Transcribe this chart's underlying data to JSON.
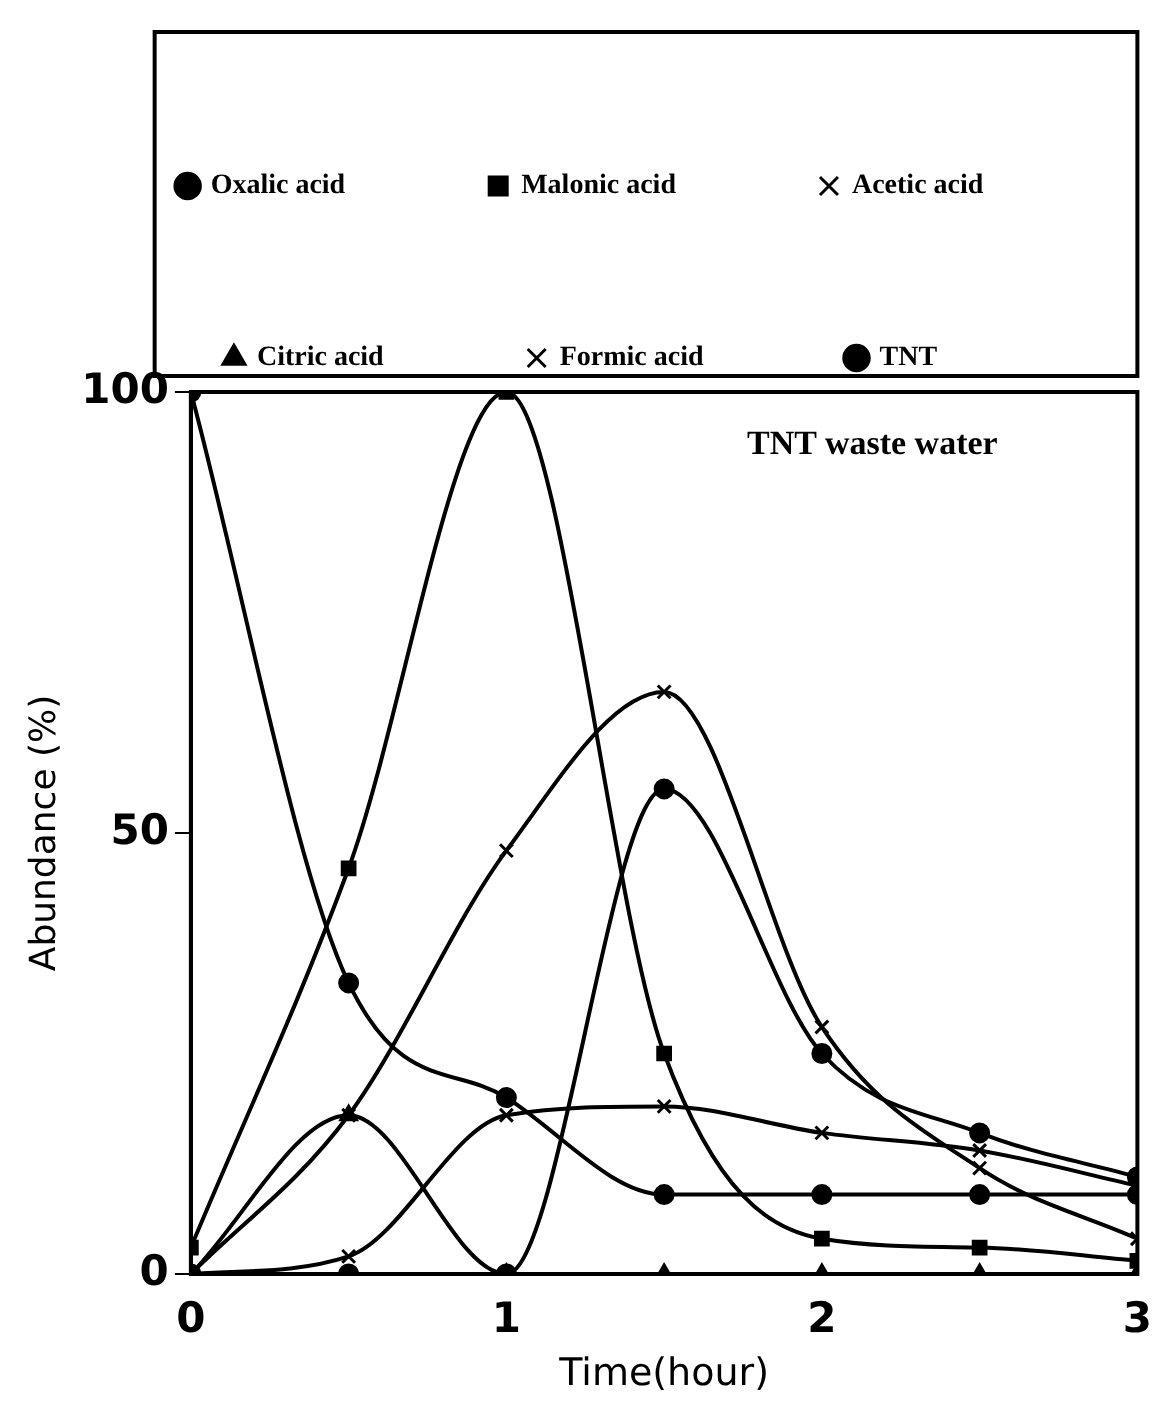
{
  "chart_data": {
    "type": "line",
    "xlabel": "Time(hour)",
    "ylabel": "Abundance (%)",
    "x": [
      0,
      0.5,
      1,
      1.5,
      2,
      2.5,
      3
    ],
    "xlim": [
      0,
      3
    ],
    "xticks": [
      0,
      1,
      2,
      3
    ],
    "ylim": [
      0,
      100
    ],
    "yticks": [
      0,
      50,
      100
    ],
    "grid": false,
    "legend": "top",
    "line_style": "solid",
    "annotations": [
      "TNT waste water"
    ],
    "series": [
      {
        "name": "Oxalic acid",
        "color": "#000000",
        "marker": "circle",
        "values": [
          0,
          0,
          0,
          55,
          25,
          16,
          11
        ]
      },
      {
        "name": "Malonic acid",
        "color": "#000000",
        "marker": "square",
        "values": [
          3,
          46,
          100,
          25,
          4,
          3,
          1.5
        ]
      },
      {
        "name": "Acetic acid",
        "color": "#000000",
        "marker": "cross",
        "values": [
          0,
          18,
          48,
          66,
          28,
          12,
          4
        ]
      },
      {
        "name": "Citric acid",
        "color": "#000000",
        "marker": "triangle",
        "values": [
          0,
          18,
          0,
          0,
          0,
          0,
          0
        ]
      },
      {
        "name": "Formic acid",
        "color": "#000000",
        "marker": "cross",
        "values": [
          0,
          2,
          18,
          19,
          16,
          14,
          10
        ]
      },
      {
        "name": "TNT",
        "color": "#000000",
        "marker": "circle",
        "values": [
          100,
          33,
          20,
          9,
          9,
          9,
          9
        ]
      }
    ]
  }
}
